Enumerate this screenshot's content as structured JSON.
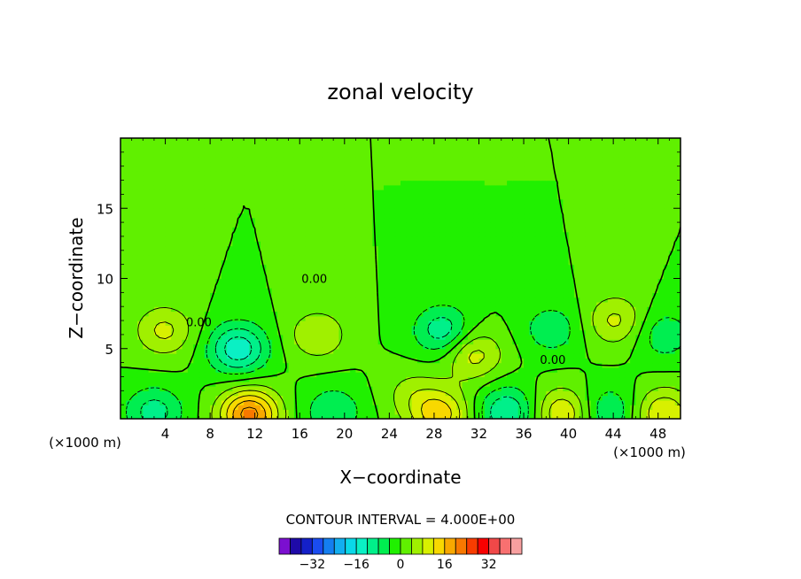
{
  "chart_data": {
    "type": "heatmap",
    "title": "zonal velocity",
    "xlabel": "X−coordinate",
    "ylabel": "Z−coordinate",
    "x_unit_label": "(×1000 m)",
    "x_unit_label_right": "(×1000 m)",
    "xlim": [
      0,
      50
    ],
    "ylim": [
      0,
      20
    ],
    "x_ticks": [
      4,
      8,
      12,
      16,
      20,
      24,
      28,
      32,
      36,
      40,
      44,
      48
    ],
    "x_tick_labels": [
      "4",
      "8",
      "12",
      "16",
      "20",
      "24",
      "28",
      "32",
      "36",
      "40",
      "44",
      "48"
    ],
    "y_ticks": [
      5,
      10,
      15
    ],
    "y_tick_labels": [
      "5",
      "10",
      "15"
    ],
    "contour_interval_text": "CONTOUR INTERVAL = 4.000E+00",
    "contour_interval": 4.0,
    "contour_labels": [
      {
        "x": 7.0,
        "y": 6.6,
        "text": "0.00"
      },
      {
        "x": 17.3,
        "y": 9.7,
        "text": "0.00"
      },
      {
        "x": 38.6,
        "y": 3.9,
        "text": "0.00"
      }
    ],
    "features": [
      {
        "x": 10.5,
        "y": 5.0,
        "value": -15
      },
      {
        "x": 3.9,
        "y": 6.3,
        "value": 9
      },
      {
        "x": 17.6,
        "y": 6.0,
        "value": 8
      },
      {
        "x": 28.8,
        "y": 6.3,
        "value": -11
      },
      {
        "x": 31.5,
        "y": 4.6,
        "value": 10
      },
      {
        "x": 44.2,
        "y": 7.0,
        "value": 9
      },
      {
        "x": 38.5,
        "y": 6.4,
        "value": -7
      },
      {
        "x": 48.5,
        "y": 6.0,
        "value": -7
      },
      {
        "x": 11.5,
        "y": 0.3,
        "value": 22
      },
      {
        "x": 28.5,
        "y": 0.3,
        "value": 14
      },
      {
        "x": 3.0,
        "y": 0.5,
        "value": -10
      },
      {
        "x": 19.0,
        "y": 0.5,
        "value": -8
      },
      {
        "x": 34.5,
        "y": 0.5,
        "value": -12
      },
      {
        "x": 39.5,
        "y": 0.4,
        "value": 12
      },
      {
        "x": 43.5,
        "y": 0.6,
        "value": -8
      },
      {
        "x": 48.5,
        "y": 0.4,
        "value": 12
      },
      {
        "x": 26.0,
        "y": 1.8,
        "value": 5
      }
    ],
    "colorbar": {
      "colors": [
        "#7b0fd0",
        "#1e0aa8",
        "#1420c8",
        "#1a4cf0",
        "#147ef0",
        "#12aef0",
        "#0ad8e8",
        "#0af0c4",
        "#00f08a",
        "#00ee50",
        "#20f000",
        "#60f000",
        "#a0f000",
        "#d8f000",
        "#f8d800",
        "#f8a800",
        "#f87800",
        "#f83c00",
        "#f80000",
        "#f04848",
        "#f87070",
        "#f8a0a0"
      ],
      "tick_values": [
        -32,
        -16,
        0,
        16,
        32
      ],
      "tick_labels": [
        "−32",
        "−16",
        "0",
        "16",
        "32"
      ]
    }
  }
}
